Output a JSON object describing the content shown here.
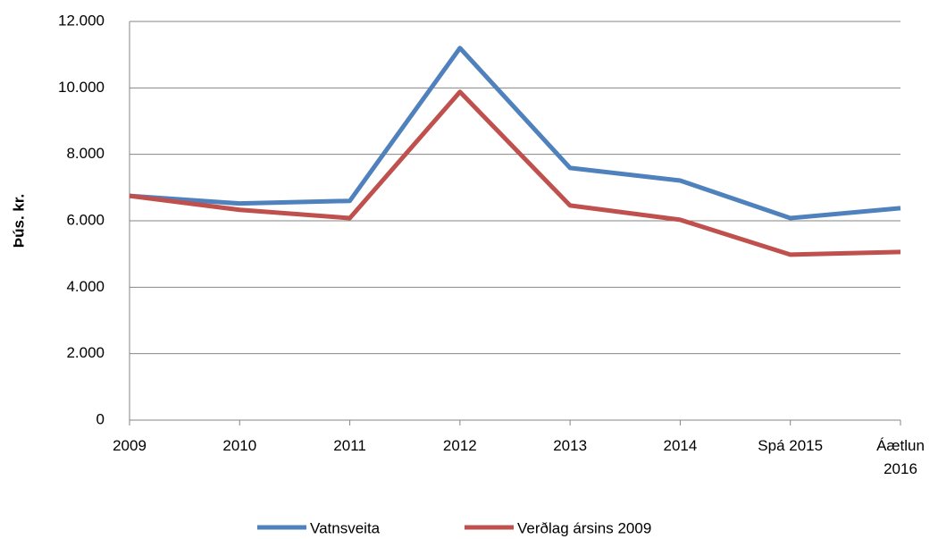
{
  "chart_data": {
    "type": "line",
    "y_label": "Þús. kr.",
    "categories": [
      "2009",
      "2010",
      "2011",
      "2012",
      "2013",
      "2014",
      "Spá 2015",
      "Áætlun 2016"
    ],
    "series": [
      {
        "name": "Vatnsveita",
        "color": "#4f81bd",
        "values": [
          6750,
          6520,
          6600,
          11200,
          7590,
          7210,
          6080,
          6380
        ]
      },
      {
        "name": "Verðlag ársins 2009",
        "color": "#c0504d",
        "values": [
          6750,
          6330,
          6080,
          9880,
          6460,
          6030,
          4980,
          5060
        ]
      }
    ],
    "ylim": [
      0,
      12000
    ],
    "yticks": [
      0,
      {
        "value": 2000,
        "label": "2.000"
      },
      {
        "value": 4000,
        "label": "4.000"
      },
      {
        "value": 6000,
        "label": "6.000"
      },
      {
        "value": 8000,
        "label": "8.000"
      },
      {
        "value": 10000,
        "label": "10.000"
      },
      {
        "value": 12000,
        "label": "12.000"
      }
    ],
    "grid": true,
    "legend": "bottom"
  }
}
